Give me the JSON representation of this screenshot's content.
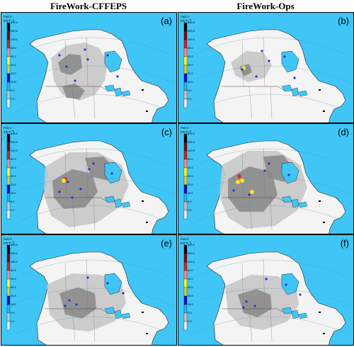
{
  "titles": {
    "left": "FireWork-CFFEPS",
    "right": "FireWork-Ops"
  },
  "colorbar": {
    "unit_line1": "PM2.5",
    "unit_line2": "(μg m⁻³)",
    "ticks": [
      "800.0",
      "300.0",
      "100.0",
      "60.0",
      "40.0",
      "30.0",
      "20.0",
      "10.0",
      "5.0",
      "2.0"
    ],
    "colors": [
      "#000000",
      "#7a0a10",
      "#d42020",
      "#ff8a8a",
      "#ffff33",
      "#d0d050",
      "#1010d0",
      "#28b0f0",
      "#c8c8c8",
      "#f4f4f4"
    ]
  },
  "colors": {
    "ocean": "#3fc6f7",
    "land": "#f4f4f4",
    "smoke_light": "#c8c8c8",
    "smoke_dark": "#8c8c8c",
    "hotspot_blue": "#1a32e6",
    "hotspot_yellow": "#f5e61e",
    "hotspot_red": "#e03020"
  },
  "panels": [
    {
      "label": "(a)",
      "model": "FireWork-CFFEPS"
    },
    {
      "label": "(b)",
      "model": "FireWork-Ops"
    },
    {
      "label": "(c)",
      "model": "FireWork-CFFEPS"
    },
    {
      "label": "(d)",
      "model": "FireWork-Ops"
    },
    {
      "label": "(e)",
      "model": "FireWork-CFFEPS"
    },
    {
      "label": "(f)",
      "model": "FireWork-Ops"
    }
  ]
}
